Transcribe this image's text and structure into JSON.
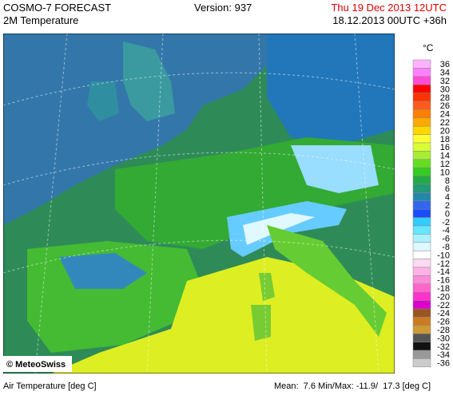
{
  "header": {
    "product": "COSMO-7 FORECAST",
    "field": "2M Temperature",
    "version": "Version: 937",
    "valid": "Thu 19 Dec 2013 12UTC",
    "run": "18.12.2013 00UTC +36h"
  },
  "legend": {
    "unit": "°C",
    "items": [
      {
        "label": "36",
        "color": "#ffb3ff"
      },
      {
        "label": "34",
        "color": "#ff80ff"
      },
      {
        "label": "32",
        "color": "#ff4dd2"
      },
      {
        "label": "30",
        "color": "#ff0000"
      },
      {
        "label": "28",
        "color": "#ff3300"
      },
      {
        "label": "26",
        "color": "#ff5a1a"
      },
      {
        "label": "24",
        "color": "#ff7f00"
      },
      {
        "label": "22",
        "color": "#ffaa00"
      },
      {
        "label": "20",
        "color": "#ffd700"
      },
      {
        "label": "18",
        "color": "#ffff33"
      },
      {
        "label": "16",
        "color": "#d9ff33"
      },
      {
        "label": "14",
        "color": "#a6ee33"
      },
      {
        "label": "12",
        "color": "#66dd22"
      },
      {
        "label": "10",
        "color": "#33cc22"
      },
      {
        "label": "8",
        "color": "#22aa44"
      },
      {
        "label": "6",
        "color": "#229977"
      },
      {
        "label": "4",
        "color": "#2288aa"
      },
      {
        "label": "2",
        "color": "#3366ee"
      },
      {
        "label": "0",
        "color": "#1a4dff"
      },
      {
        "label": "-2",
        "color": "#33ccff"
      },
      {
        "label": "-4",
        "color": "#66e6ff"
      },
      {
        "label": "-6",
        "color": "#aaf2ff"
      },
      {
        "label": "-8",
        "color": "#e0f8ff"
      },
      {
        "label": "-10",
        "color": "#ffffff"
      },
      {
        "label": "-12",
        "color": "#ffd9f2"
      },
      {
        "label": "-14",
        "color": "#ffb3e6"
      },
      {
        "label": "-16",
        "color": "#ff8cd9"
      },
      {
        "label": "-18",
        "color": "#ff66cc"
      },
      {
        "label": "-20",
        "color": "#ff33cc"
      },
      {
        "label": "-22",
        "color": "#dd00cc"
      },
      {
        "label": "-24",
        "color": "#995522"
      },
      {
        "label": "-26",
        "color": "#cc7a22"
      },
      {
        "label": "-28",
        "color": "#cc9933"
      },
      {
        "label": "-30",
        "color": "#555555"
      },
      {
        "label": "-32",
        "color": "#111111"
      },
      {
        "label": "-34",
        "color": "#999999"
      },
      {
        "label": "-36",
        "color": "#cccccc"
      }
    ]
  },
  "map": {
    "credit": "© MeteoSwiss"
  },
  "footer": {
    "variable": "Air Temperature [deg C]",
    "stats": "Mean:  7.6 Min/Max: -11.9/  17.3 [deg C]"
  }
}
